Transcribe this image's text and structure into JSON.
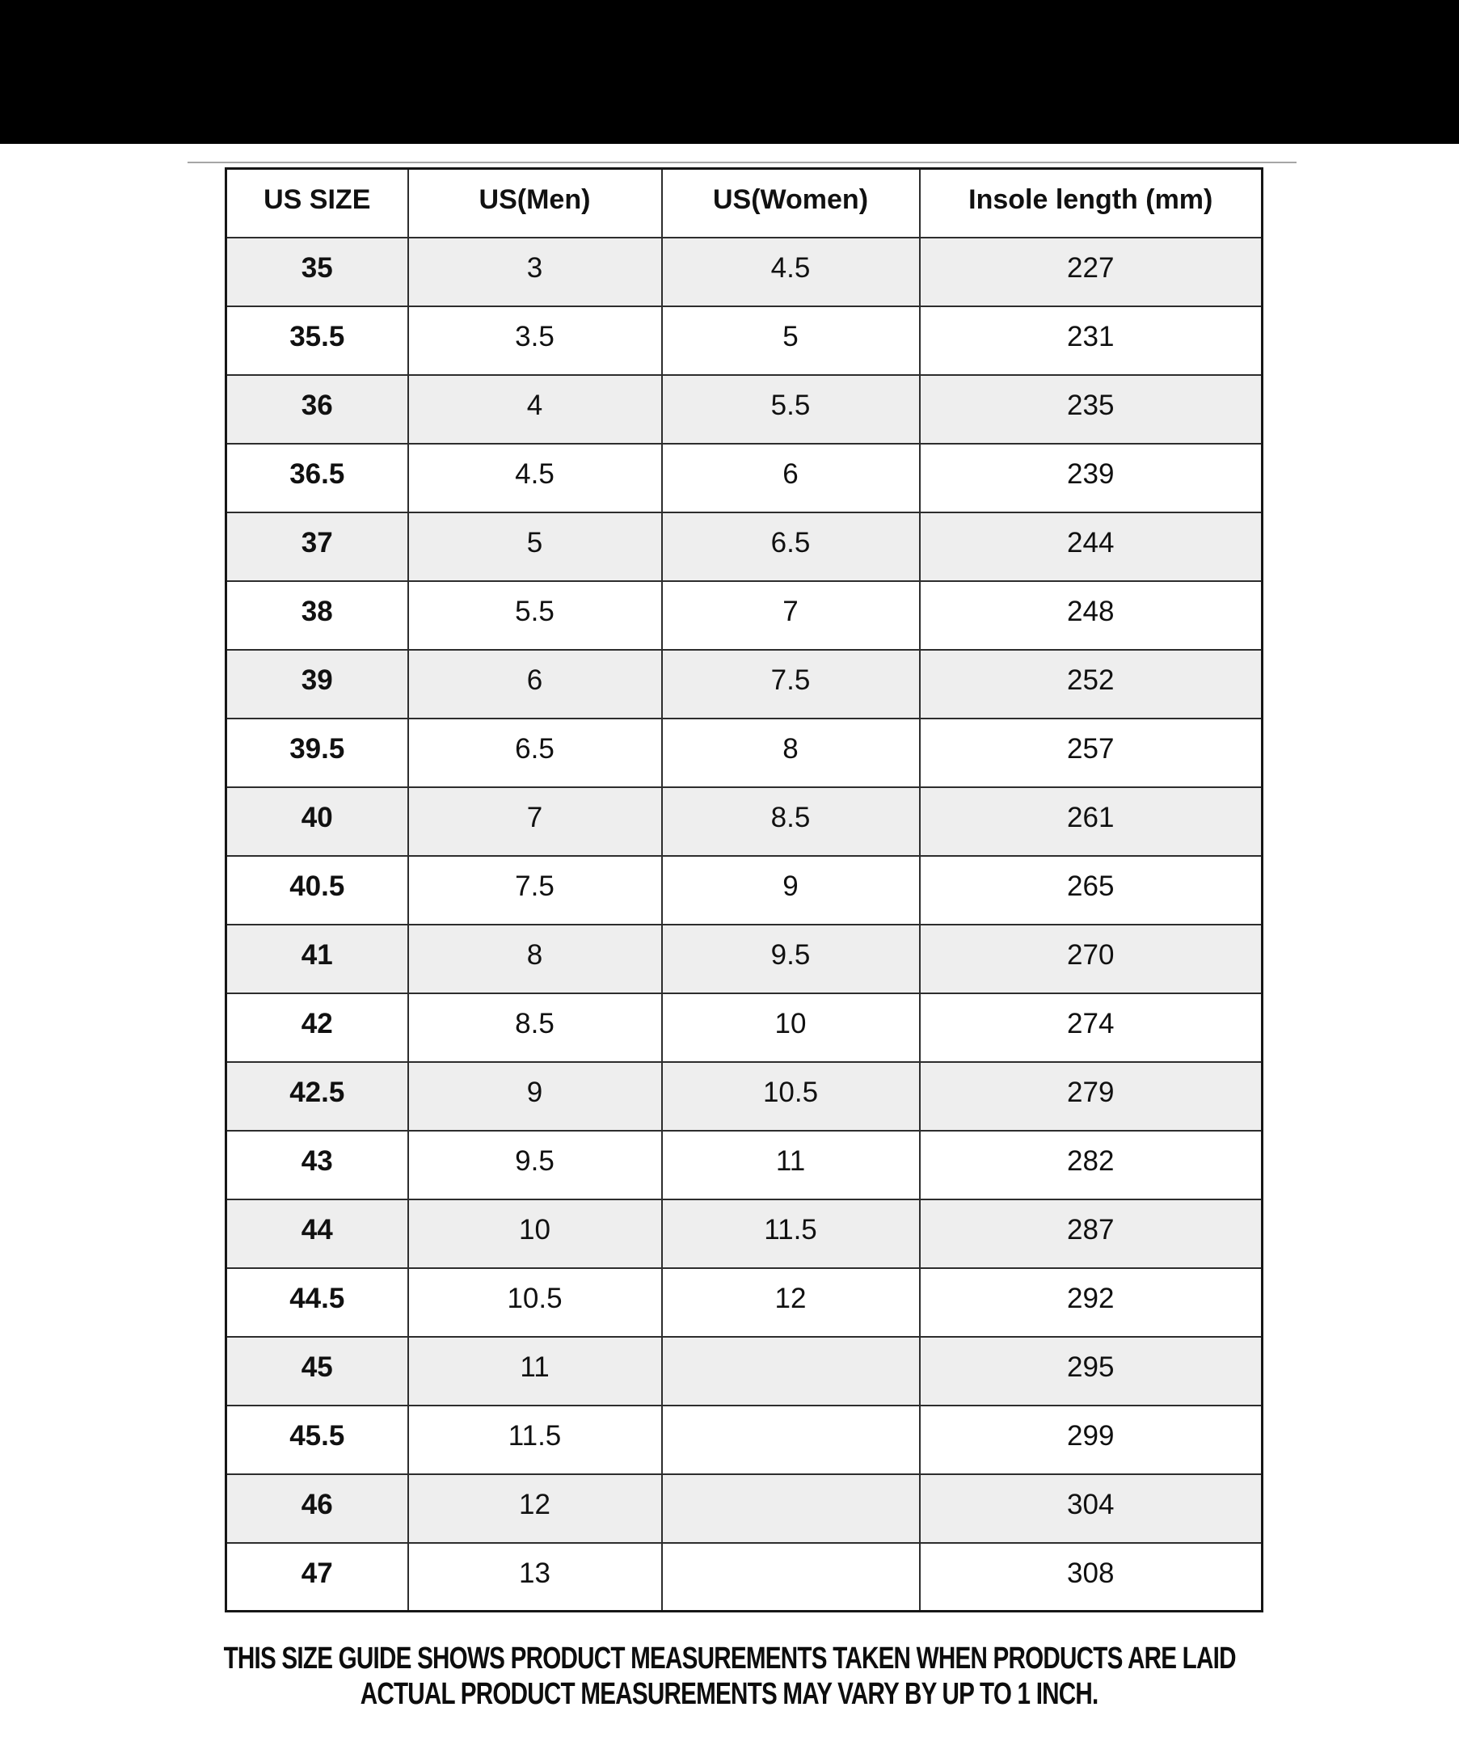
{
  "banner": {
    "color": "#000000"
  },
  "colors": {
    "stripe_row": "#eeeeee",
    "grid_line": "#2d2d2d",
    "text": "#111111",
    "banner": "#000000"
  },
  "chart_data": {
    "type": "table",
    "columns": [
      "US SIZE",
      "US(Men)",
      "US(Women)",
      "Insole length (mm)"
    ],
    "column_keys": [
      "us-size",
      "us-men",
      "us-women",
      "insole-length-mm"
    ],
    "rows": [
      [
        "35",
        "3",
        "4.5",
        "227"
      ],
      [
        "35.5",
        "3.5",
        "5",
        "231"
      ],
      [
        "36",
        "4",
        "5.5",
        "235"
      ],
      [
        "36.5",
        "4.5",
        "6",
        "239"
      ],
      [
        "37",
        "5",
        "6.5",
        "244"
      ],
      [
        "38",
        "5.5",
        "7",
        "248"
      ],
      [
        "39",
        "6",
        "7.5",
        "252"
      ],
      [
        "39.5",
        "6.5",
        "8",
        "257"
      ],
      [
        "40",
        "7",
        "8.5",
        "261"
      ],
      [
        "40.5",
        "7.5",
        "9",
        "265"
      ],
      [
        "41",
        "8",
        "9.5",
        "270"
      ],
      [
        "42",
        "8.5",
        "10",
        "274"
      ],
      [
        "42.5",
        "9",
        "10.5",
        "279"
      ],
      [
        "43",
        "9.5",
        "11",
        "282"
      ],
      [
        "44",
        "10",
        "11.5",
        "287"
      ],
      [
        "44.5",
        "10.5",
        "12",
        "292"
      ],
      [
        "45",
        "11",
        "",
        "295"
      ],
      [
        "45.5",
        "11.5",
        "",
        "299"
      ],
      [
        "46",
        "12",
        "",
        "304"
      ],
      [
        "47",
        "13",
        "",
        "308"
      ]
    ]
  },
  "footer": {
    "line1": "THIS SIZE GUIDE SHOWS PRODUCT MEASUREMENTS TAKEN WHEN PRODUCTS ARE LAID",
    "line2": "ACTUAL PRODUCT MEASUREMENTS MAY VARY BY UP TO 1 INCH."
  }
}
